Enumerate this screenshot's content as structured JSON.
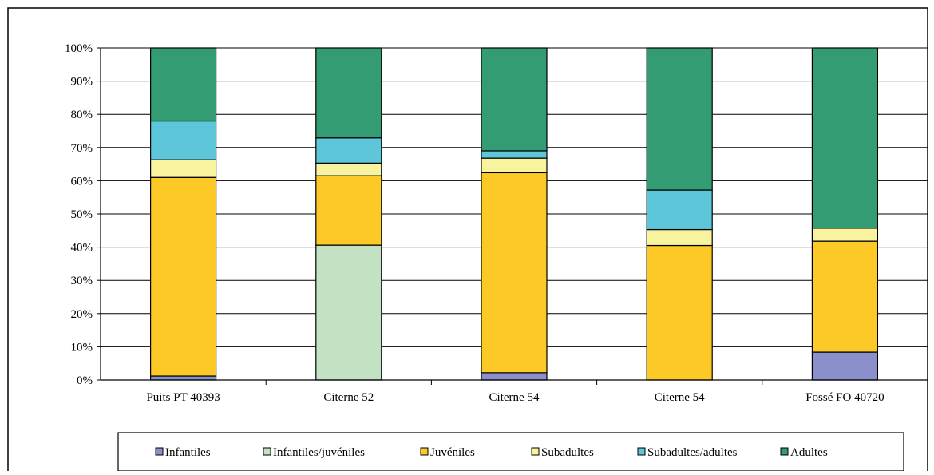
{
  "chart_data": {
    "type": "bar",
    "stacked": true,
    "normalized": true,
    "categories": [
      "Puits PT 40393",
      "Citerne 52",
      "Citerne 54",
      "Citerne 54",
      "Fossé FO 40720"
    ],
    "ylim": [
      0,
      100
    ],
    "yticks": [
      "0%",
      "10%",
      "20%",
      "30%",
      "40%",
      "50%",
      "60%",
      "70%",
      "80%",
      "90%",
      "100%"
    ],
    "grid": true,
    "legend_position": "bottom",
    "series": [
      {
        "name": "Infantiles",
        "color": "#8B8FCB",
        "values": [
          1.2,
          0,
          2.2,
          0,
          8.4
        ]
      },
      {
        "name": "Infantiles/juvéniles",
        "color": "#C2E2C3",
        "values": [
          0,
          40.6,
          0,
          0,
          0
        ]
      },
      {
        "name": "Juvéniles",
        "color": "#FCC926",
        "values": [
          59.8,
          20.9,
          60.2,
          40.5,
          33.4
        ]
      },
      {
        "name": "Subadultes",
        "color": "#F8F39E",
        "values": [
          5.3,
          3.8,
          4.4,
          4.8,
          3.9
        ]
      },
      {
        "name": "Subadultes/adultes",
        "color": "#5DC6D8",
        "values": [
          11.7,
          7.6,
          2.2,
          11.9,
          0
        ]
      },
      {
        "name": "Adultes",
        "color": "#339C72",
        "values": [
          22.0,
          27.1,
          31.0,
          42.8,
          54.3
        ]
      }
    ]
  }
}
